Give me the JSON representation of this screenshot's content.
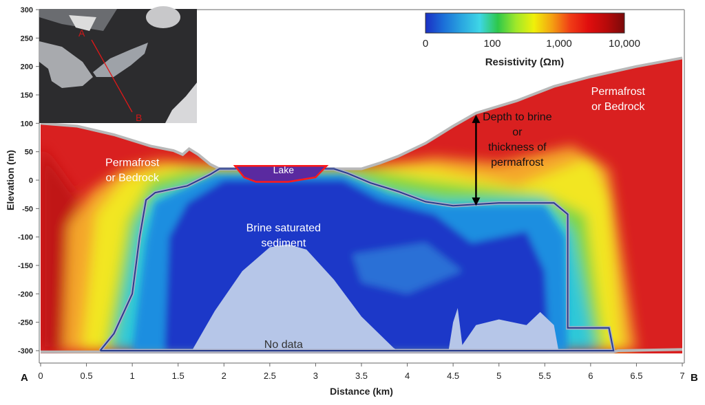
{
  "chart_data": {
    "type": "heatmap",
    "title": "",
    "xlabel": "Distance (km)",
    "ylabel": "Elevation (m)",
    "xlim": [
      0,
      7
    ],
    "ylim": [
      -300,
      300
    ],
    "x_ticks": [
      "0",
      "0.5",
      "1",
      "1.5",
      "2",
      "2.5",
      "3",
      "3.5",
      "4",
      "4.5",
      "5",
      "5.5",
      "6",
      "6.5",
      "7"
    ],
    "y_ticks": [
      "300",
      "250",
      "200",
      "150",
      "100",
      "50",
      "0",
      "-50",
      "-100",
      "-150",
      "-200",
      "-250",
      "-300"
    ],
    "endpoint_labels": {
      "start": "A",
      "end": "B"
    },
    "colorbar": {
      "label": "Resistivity (Ωm)",
      "scale": "log",
      "tick_labels": [
        "0",
        "100",
        "1,000",
        "10,000"
      ],
      "colors": [
        "#1b2fc4",
        "#1b6fd8",
        "#2aa6e0",
        "#3ed6e6",
        "#2ec84a",
        "#9fe82a",
        "#f0f00a",
        "#f4a012",
        "#f03c16",
        "#e00e0e",
        "#b80a0a",
        "#7a0a0a"
      ]
    },
    "annotations": [
      {
        "text": [
          "Permafrost",
          "or Bedrock"
        ],
        "x": 1.0,
        "y": 25
      },
      {
        "text": [
          "Permafrost",
          "or Bedrock"
        ],
        "x": 6.3,
        "y": 150
      },
      {
        "text": [
          "Lake"
        ],
        "x": 2.65,
        "y": 12
      },
      {
        "text": [
          "Brine saturated",
          "sediment"
        ],
        "x": 2.65,
        "y": -90
      },
      {
        "text": [
          "No data"
        ],
        "x": 2.65,
        "y": -295
      },
      {
        "text": [
          "Depth to brine",
          "or",
          "thickness of",
          "permafrost"
        ],
        "x": 5.2,
        "y": 105
      }
    ],
    "depth_arrow": {
      "x": 4.75,
      "from": 115,
      "to": -45
    },
    "inset_map": {
      "start_label": "A",
      "end_label": "B"
    }
  }
}
